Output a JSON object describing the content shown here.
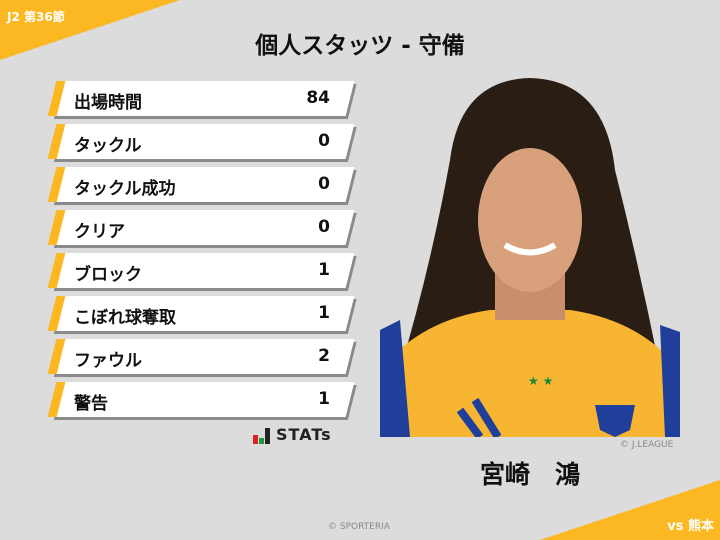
{
  "header": {
    "round": "J2 第36節",
    "title": "個人スタッツ - 守備",
    "opponent": "vs 熊本"
  },
  "stats": [
    {
      "label": "出場時間",
      "value": "84"
    },
    {
      "label": "タックル",
      "value": "0"
    },
    {
      "label": "タックル成功",
      "value": "0"
    },
    {
      "label": "クリア",
      "value": "0"
    },
    {
      "label": "ブロック",
      "value": "1"
    },
    {
      "label": "こぼれ球奪取",
      "value": "1"
    },
    {
      "label": "ファウル",
      "value": "2"
    },
    {
      "label": "警告",
      "value": "1"
    }
  ],
  "logo": {
    "text": "STATs"
  },
  "player": {
    "name": "宮崎　鴻",
    "photo_credit": "© J.LEAGUE"
  },
  "footer": {
    "copyright": "© SPORTERIA"
  },
  "colors": {
    "accent": "#fbb822",
    "background": "#dcdcdc",
    "shirt": "#f7b531"
  }
}
